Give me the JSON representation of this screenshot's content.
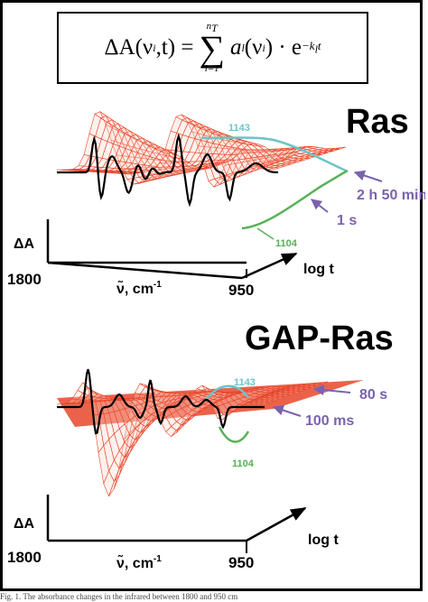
{
  "equation": {
    "lhs": "ΔA(ν",
    "lhs_sub": "i",
    "lhs_rest": ",t) =",
    "sum_top": "n",
    "sum_top_sub": "T",
    "sum_bottom": "l=1",
    "term_a": "a",
    "term_a_sub": "l",
    "term_nu": "(ν",
    "term_nu_sub": "i",
    "term_close": ") · e",
    "exponent": "−k",
    "exponent_sub": "l",
    "exponent_t": "t"
  },
  "panels": [
    {
      "title": "Ras",
      "peak_high": "1143",
      "peak_low": "1104",
      "time_late": "2 h 50 min",
      "time_early": "1 s",
      "y_axis": "ΔA",
      "x_left": "1800",
      "x_right": "950",
      "x_axis": "ν̃,  cm",
      "x_axis_sup": "-1",
      "t_axis": "log t"
    },
    {
      "title": "GAP-Ras",
      "peak_high": "1143",
      "peak_low": "1104",
      "time_late": "80 s",
      "time_early": "100 ms",
      "y_axis": "ΔA",
      "x_left": "1800",
      "x_right": "950",
      "x_axis": "ν̃,  cm",
      "x_axis_sup": "-1",
      "t_axis": "log t"
    }
  ],
  "colors": {
    "mesh": "#e8472c",
    "mesh_fill": "#fbd9cf",
    "spectrum": "#000000",
    "cyan": "#6cc4c8",
    "green": "#55b255",
    "purple": "#7a62ae"
  },
  "caption": "Fig. 1.  The absorbance changes in the infrared between 1800 and 950 cm"
}
